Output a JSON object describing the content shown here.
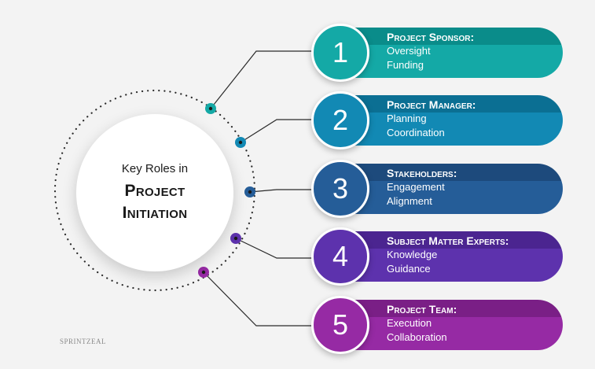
{
  "center": {
    "subtitle": "Key Roles in",
    "title_line1": "Project",
    "title_line2": "Initiation"
  },
  "roles": [
    {
      "number": "1",
      "title": "Project Sponsor:",
      "items": [
        "Oversight",
        "Funding"
      ],
      "color_dark": "#0a8c8a",
      "color_light": "#14a9a6"
    },
    {
      "number": "2",
      "title": "Project Manager:",
      "items": [
        "Planning",
        "Coordination"
      ],
      "color_dark": "#0b6f93",
      "color_light": "#1289b4"
    },
    {
      "number": "3",
      "title": "Stakeholders:",
      "items": [
        "Engagement",
        "Alignment"
      ],
      "color_dark": "#1d4a7c",
      "color_light": "#255d98"
    },
    {
      "number": "4",
      "title": "Subject Matter Experts:",
      "items": [
        "Knowledge",
        "Guidance"
      ],
      "color_dark": "#4b2590",
      "color_light": "#5d32ad"
    },
    {
      "number": "5",
      "title": "Project Team:",
      "items": [
        "Execution",
        "Collaboration"
      ],
      "color_dark": "#7a1f86",
      "color_light": "#962aa4"
    }
  ],
  "logo": {
    "text": "SPRINTZEAL"
  }
}
